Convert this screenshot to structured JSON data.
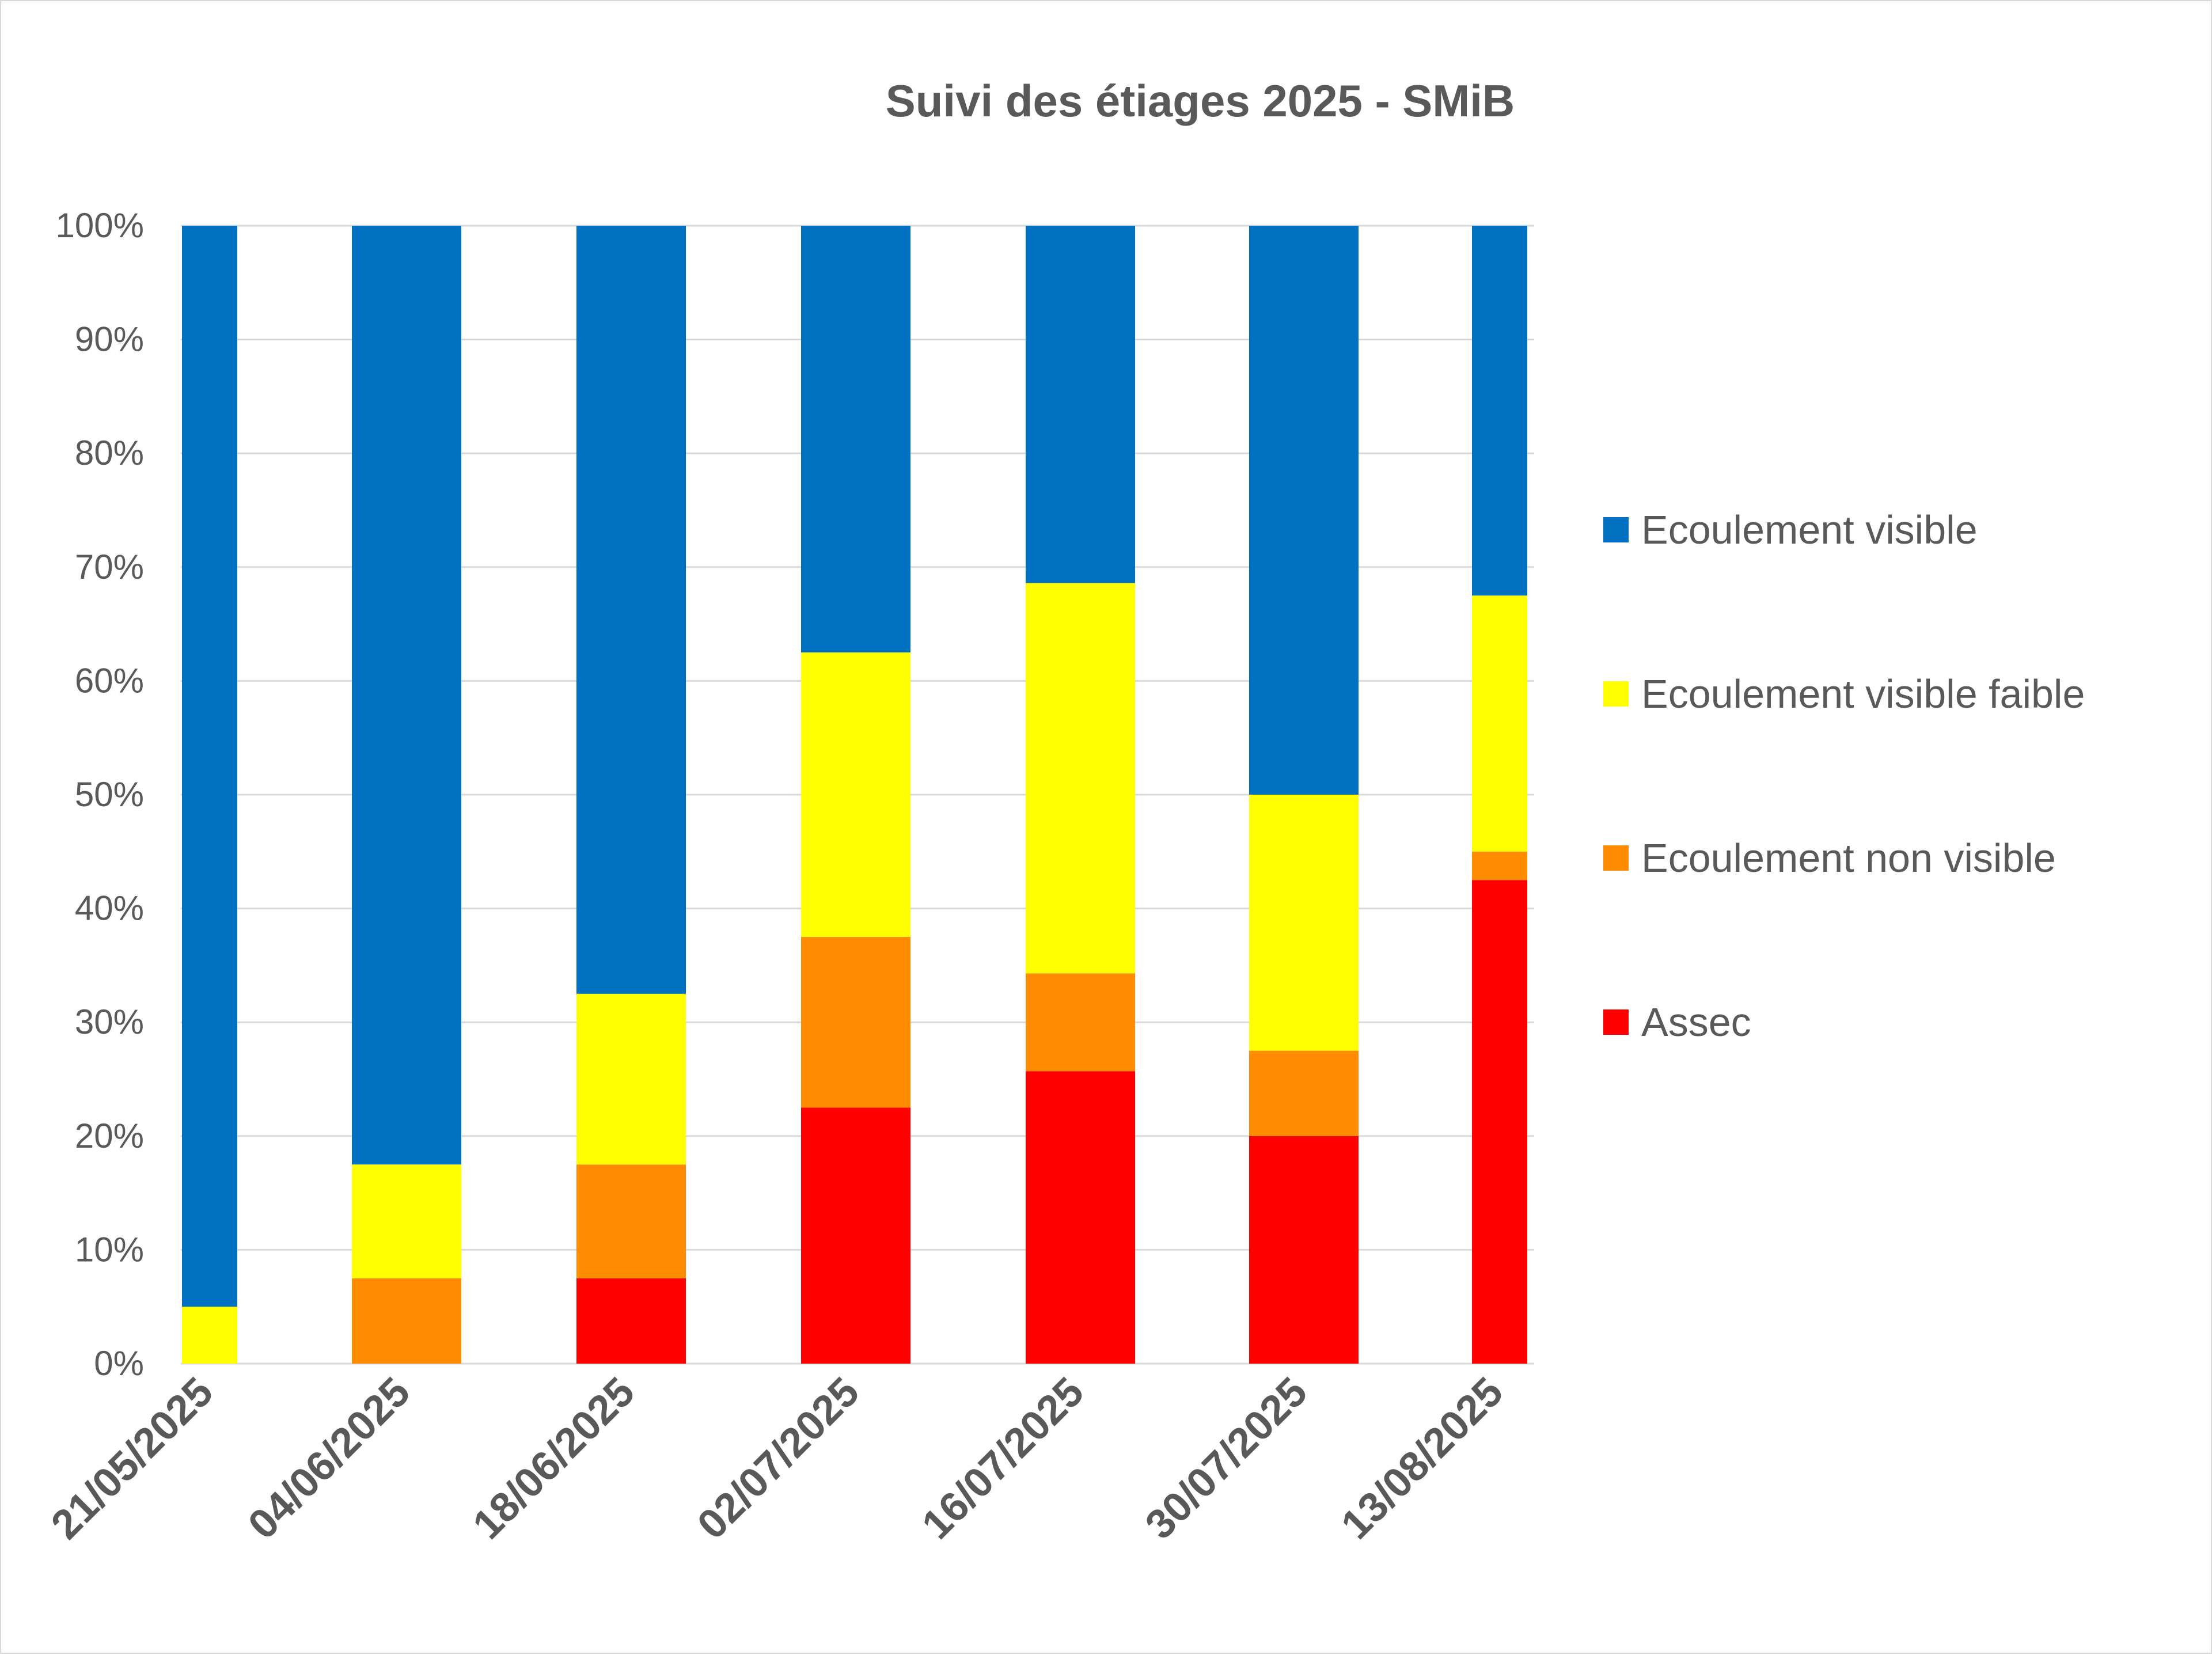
{
  "chart_data": {
    "type": "bar",
    "stacked": true,
    "percent": true,
    "title": "Suivi des étiages 2025 - SMiB",
    "categories": [
      "21/05/2025",
      "04/06/2025",
      "18/06/2025",
      "02/07/2025",
      "16/07/2025",
      "30/07/2025",
      "13/08/2025"
    ],
    "series": [
      {
        "name": "Assec",
        "color": "#ff0000",
        "values": [
          0,
          0,
          7.5,
          22.5,
          25.7,
          20.0,
          42.5
        ]
      },
      {
        "name": "Ecoulement non visible",
        "color": "#ff8c00",
        "values": [
          0,
          7.5,
          10.0,
          15.0,
          8.6,
          7.5,
          2.5
        ]
      },
      {
        "name": "Ecoulement visible faible",
        "color": "#ffff00",
        "values": [
          5.0,
          10.0,
          15.0,
          25.0,
          34.3,
          22.5,
          22.5
        ]
      },
      {
        "name": "Ecoulement visible",
        "color": "#0070c0",
        "values": [
          95.0,
          82.5,
          67.5,
          37.5,
          31.4,
          50.0,
          32.5
        ]
      }
    ],
    "legend_order": [
      "Ecoulement visible",
      "Ecoulement visible faible",
      "Ecoulement non visible",
      "Assec"
    ],
    "yticks": [
      "0%",
      "10%",
      "20%",
      "30%",
      "40%",
      "50%",
      "60%",
      "70%",
      "80%",
      "90%",
      "100%"
    ],
    "ylim": [
      0,
      100
    ],
    "grid": true,
    "legend_position": "right",
    "gridline_color": "#d9d9d9"
  }
}
